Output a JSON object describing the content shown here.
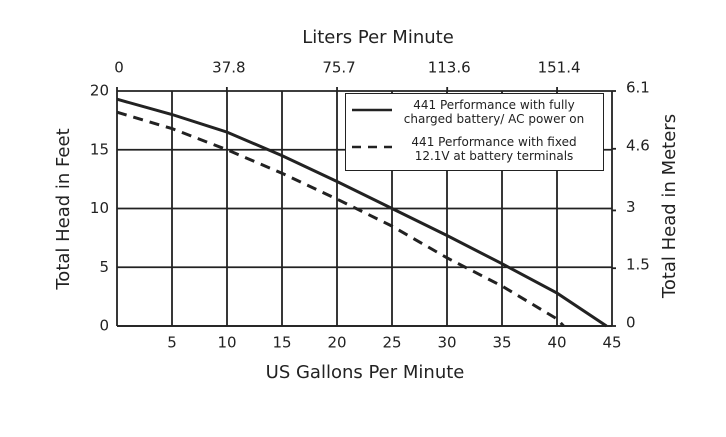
{
  "chart_data": {
    "type": "line",
    "xlabel": "US Gallons Per Minute",
    "x2label": "Liters Per Minute",
    "ylabel": "Total Head in Feet",
    "y2label": "Total Head in Meters",
    "xlim": [
      0,
      45
    ],
    "xticks": [
      5,
      10,
      15,
      20,
      25,
      30,
      35,
      40,
      45
    ],
    "x2lim": [
      0,
      170.3
    ],
    "x2ticks": [
      0,
      37.8,
      75.7,
      113.6,
      151.4
    ],
    "ylim": [
      0,
      20
    ],
    "yticks": [
      0,
      5,
      10,
      15,
      20
    ],
    "y2lim": [
      0,
      6.1
    ],
    "y2ticks": [
      0,
      1.5,
      3.0,
      4.6,
      6.1
    ],
    "grid": true,
    "legend": "upper right",
    "series": [
      {
        "name": "441 Performance with fully charged battery/ AC power on",
        "color": "#222222",
        "style": "solid",
        "x": [
          0,
          5,
          10,
          15,
          20,
          25,
          30,
          35,
          40,
          44.5
        ],
        "values": [
          19.3,
          18,
          16.5,
          14.5,
          12.3,
          10,
          7.7,
          5.3,
          2.8,
          0
        ]
      },
      {
        "name": "441 Performance with fixed 12.1V at battery terminals",
        "color": "#222222",
        "style": "dashed",
        "x": [
          0,
          5,
          10,
          15,
          20,
          25,
          30,
          35,
          40,
          40.6
        ],
        "values": [
          18.2,
          16.8,
          15,
          13,
          10.8,
          8.5,
          5.8,
          3.4,
          0.6,
          0
        ]
      }
    ]
  }
}
